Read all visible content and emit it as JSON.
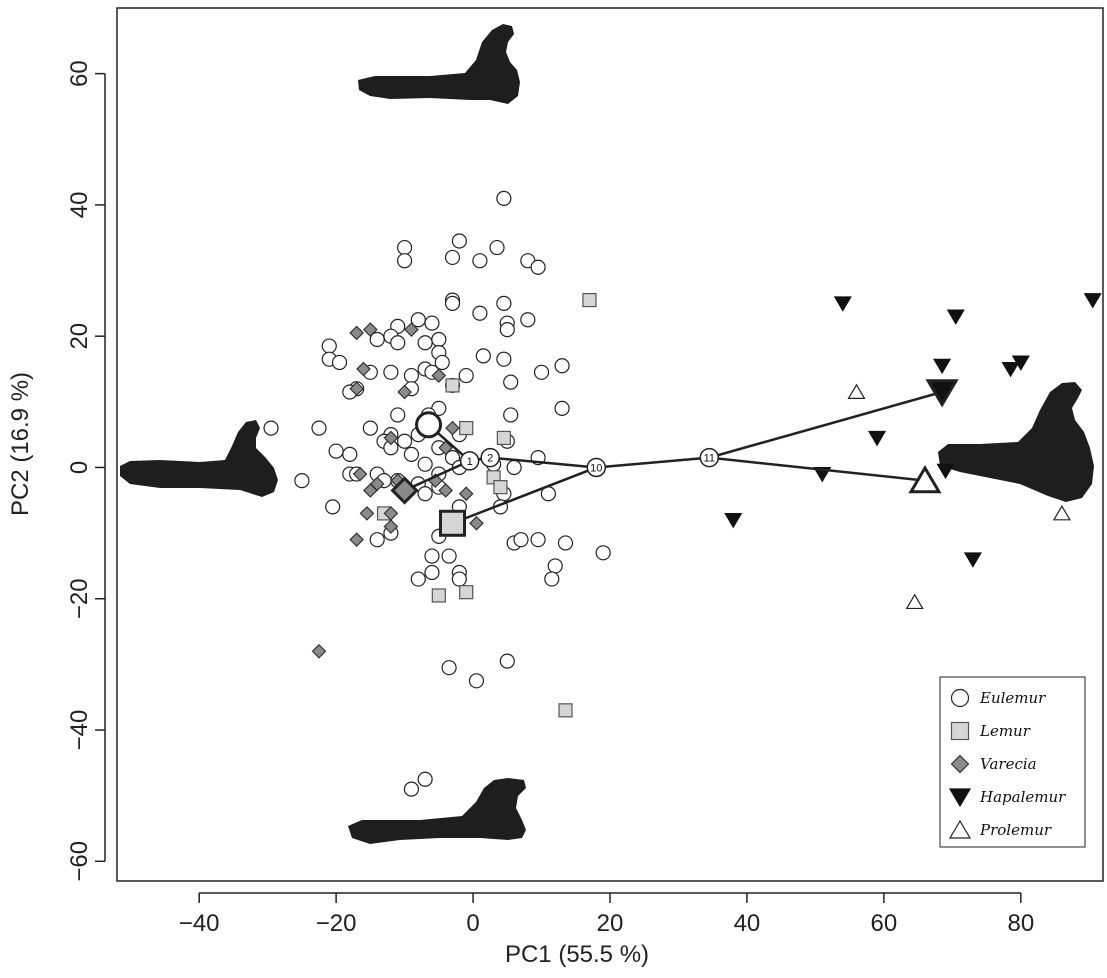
{
  "chart_data": {
    "type": "scatter",
    "xlabel": "PC1 (55.5 %)",
    "ylabel": "PC2 (16.9 %)",
    "xlim": [
      -52,
      92
    ],
    "ylim": [
      -63,
      70
    ],
    "x_ticks": [
      -40,
      -20,
      0,
      20,
      40,
      60,
      80
    ],
    "x_tick_labels": [
      "−40",
      "−20",
      "0",
      "20",
      "40",
      "60",
      "80"
    ],
    "y_ticks": [
      -60,
      -40,
      -20,
      0,
      20,
      40,
      60
    ],
    "y_tick_labels": [
      "−60",
      "−40",
      "−20",
      "0",
      "20",
      "40",
      "60"
    ],
    "grid": false,
    "legend_position": "bottom-right",
    "series": [
      {
        "name": "Eulemur",
        "marker": "circle-open",
        "fill": "#ffffff",
        "stroke": "#222222",
        "points": [
          [
            4.5,
            41
          ],
          [
            -10,
            33.5
          ],
          [
            -2,
            34.5
          ],
          [
            3.5,
            33.5
          ],
          [
            -10,
            31.5
          ],
          [
            -3,
            32
          ],
          [
            1,
            31.5
          ],
          [
            8,
            31.5
          ],
          [
            9.5,
            30.5
          ],
          [
            -3,
            25.5
          ],
          [
            -3,
            25
          ],
          [
            4.5,
            25
          ],
          [
            1,
            23.5
          ],
          [
            5,
            22
          ],
          [
            5,
            21
          ],
          [
            8,
            22.5
          ],
          [
            -6,
            22
          ],
          [
            -8,
            22.5
          ],
          [
            -11,
            21.5
          ],
          [
            -12,
            20
          ],
          [
            -11,
            19
          ],
          [
            -14,
            19.5
          ],
          [
            -5,
            19.5
          ],
          [
            -7,
            19
          ],
          [
            -5,
            17.5
          ],
          [
            1.5,
            17
          ],
          [
            -4.5,
            16
          ],
          [
            -21,
            18.5
          ],
          [
            -21,
            16.5
          ],
          [
            -19.5,
            16
          ],
          [
            -12,
            14.5
          ],
          [
            -15,
            14.5
          ],
          [
            -9,
            14
          ],
          [
            -7,
            15
          ],
          [
            -6,
            14.5
          ],
          [
            -3,
            12.5
          ],
          [
            -1,
            14
          ],
          [
            4.5,
            16.5
          ],
          [
            5.5,
            13
          ],
          [
            10,
            14.5
          ],
          [
            13,
            15.5
          ],
          [
            -17,
            12
          ],
          [
            -18,
            11.5
          ],
          [
            -9,
            12
          ],
          [
            -5,
            9
          ],
          [
            -6.5,
            8
          ],
          [
            5.5,
            8
          ],
          [
            13,
            9
          ],
          [
            -11,
            8
          ],
          [
            -15,
            6
          ],
          [
            -22.5,
            6
          ],
          [
            -29.5,
            6
          ],
          [
            -12,
            5
          ],
          [
            -13,
            4
          ],
          [
            -10,
            4
          ],
          [
            -8,
            5
          ],
          [
            -2,
            5
          ],
          [
            5,
            4
          ],
          [
            -12,
            3
          ],
          [
            -9,
            2
          ],
          [
            -5,
            3
          ],
          [
            -3,
            1.5
          ],
          [
            -7,
            0.5
          ],
          [
            -2,
            0
          ],
          [
            3,
            0.5
          ],
          [
            6,
            0
          ],
          [
            -5,
            -1
          ],
          [
            9.5,
            1.5
          ],
          [
            -18,
            2
          ],
          [
            -20,
            2.5
          ],
          [
            -18,
            -1
          ],
          [
            -17,
            -1
          ],
          [
            -14,
            -1
          ],
          [
            -11,
            -2
          ],
          [
            -13,
            -2
          ],
          [
            -8,
            -2.5
          ],
          [
            -5,
            -3
          ],
          [
            4.5,
            -4
          ],
          [
            11,
            -4
          ],
          [
            -25,
            -2
          ],
          [
            -20.5,
            -6
          ],
          [
            -7,
            -4
          ],
          [
            -2,
            -6
          ],
          [
            4,
            -6
          ],
          [
            -12,
            -10
          ],
          [
            -14,
            -11
          ],
          [
            -5,
            -10.5
          ],
          [
            6,
            -11.5
          ],
          [
            7,
            -11
          ],
          [
            9.5,
            -11
          ],
          [
            13.5,
            -11.5
          ],
          [
            12,
            -15
          ],
          [
            19,
            -13
          ],
          [
            11.5,
            -17
          ],
          [
            -8,
            -17
          ],
          [
            -6,
            -16
          ],
          [
            -6,
            -13.5
          ],
          [
            -2,
            -16
          ],
          [
            -3.5,
            -13.5
          ],
          [
            -2,
            -17
          ],
          [
            -3.5,
            -30.5
          ],
          [
            0.5,
            -32.5
          ],
          [
            5,
            -29.5
          ],
          [
            -7,
            -47.5
          ],
          [
            -9,
            -49
          ]
        ]
      },
      {
        "name": "Lemur",
        "marker": "square",
        "fill": "#d6d6d6",
        "stroke": "#555555",
        "points": [
          [
            17,
            25.5
          ],
          [
            -3,
            12.5
          ],
          [
            -1,
            6
          ],
          [
            4.5,
            4.5
          ],
          [
            3,
            -1.5
          ],
          [
            4,
            -3
          ],
          [
            -13,
            -7
          ],
          [
            -5,
            -19.5
          ],
          [
            -1,
            -19
          ],
          [
            13.5,
            -37
          ]
        ]
      },
      {
        "name": "Varecia",
        "marker": "diamond",
        "fill": "#8a8a8a",
        "stroke": "#333333",
        "points": [
          [
            -17,
            20.5
          ],
          [
            -15,
            21
          ],
          [
            -9,
            21
          ],
          [
            -16,
            15
          ],
          [
            -10,
            11.5
          ],
          [
            -5,
            14
          ],
          [
            -3,
            6
          ],
          [
            -4,
            3
          ],
          [
            -17,
            12
          ],
          [
            -12,
            4.5
          ],
          [
            -14,
            -2.5
          ],
          [
            -11,
            -2
          ],
          [
            -16.5,
            -1
          ],
          [
            -5.5,
            -2
          ],
          [
            -15,
            -3.5
          ],
          [
            -4,
            -3.5
          ],
          [
            -1,
            -4
          ],
          [
            -15.5,
            -7
          ],
          [
            -12,
            -7
          ],
          [
            -12,
            -9
          ],
          [
            -17,
            -11
          ],
          [
            0.5,
            -8.5
          ],
          [
            -22.5,
            -28
          ]
        ]
      },
      {
        "name": "Hapalemur",
        "marker": "triangle-down",
        "fill": "#111111",
        "stroke": "#111111",
        "points": [
          [
            54,
            25
          ],
          [
            70.5,
            23
          ],
          [
            90.5,
            25.5
          ],
          [
            68.5,
            15.5
          ],
          [
            78.5,
            15
          ],
          [
            80,
            16
          ],
          [
            59,
            4.5
          ],
          [
            51,
            -1
          ],
          [
            69,
            -0.5
          ],
          [
            38,
            -8
          ],
          [
            73,
            -14
          ]
        ]
      },
      {
        "name": "Prolemur",
        "marker": "triangle-up",
        "fill": "#ffffff",
        "stroke": "#222222",
        "points": [
          [
            56,
            11.5
          ],
          [
            86,
            -7
          ],
          [
            64.5,
            -20.5
          ]
        ]
      }
    ],
    "means": [
      {
        "series": "Eulemur",
        "x": -6.5,
        "y": 6.5
      },
      {
        "series": "Lemur",
        "x": -3,
        "y": -8.5
      },
      {
        "series": "Varecia",
        "x": -10,
        "y": -3.5
      },
      {
        "series": "Hapalemur",
        "x": 68.5,
        "y": 11.5
      },
      {
        "series": "Prolemur",
        "x": 66,
        "y": -2
      }
    ],
    "tree_nodes": [
      {
        "label": "1",
        "x": -0.5,
        "y": 1
      },
      {
        "label": "2",
        "x": 2.5,
        "y": 1.5
      },
      {
        "label": "10",
        "x": 18,
        "y": 0
      },
      {
        "label": "11",
        "x": 34.5,
        "y": 1.5
      }
    ],
    "tree_edges": [
      [
        "Eulemur",
        "1"
      ],
      [
        "Varecia",
        "1"
      ],
      [
        "1",
        "2"
      ],
      [
        "2",
        "10"
      ],
      [
        "Lemur",
        "10"
      ],
      [
        "10",
        "11"
      ],
      [
        "11",
        "Hapalemur"
      ],
      [
        "11",
        "Prolemur"
      ]
    ]
  },
  "legend": {
    "items": [
      {
        "label": "Eulemur",
        "marker": "circle-open"
      },
      {
        "label": "Lemur",
        "marker": "square"
      },
      {
        "label": "Varecia",
        "marker": "diamond"
      },
      {
        "label": "Hapalemur",
        "marker": "triangle-down"
      },
      {
        "label": "Prolemur",
        "marker": "triangle-up"
      }
    ]
  },
  "shape_illustrations": [
    {
      "name": "pc2-positive-shape",
      "icon": "talus-silhouette"
    },
    {
      "name": "pc1-negative-shape",
      "icon": "talus-silhouette"
    },
    {
      "name": "pc1-positive-shape",
      "icon": "talus-silhouette"
    },
    {
      "name": "pc2-negative-shape",
      "icon": "talus-silhouette"
    }
  ]
}
